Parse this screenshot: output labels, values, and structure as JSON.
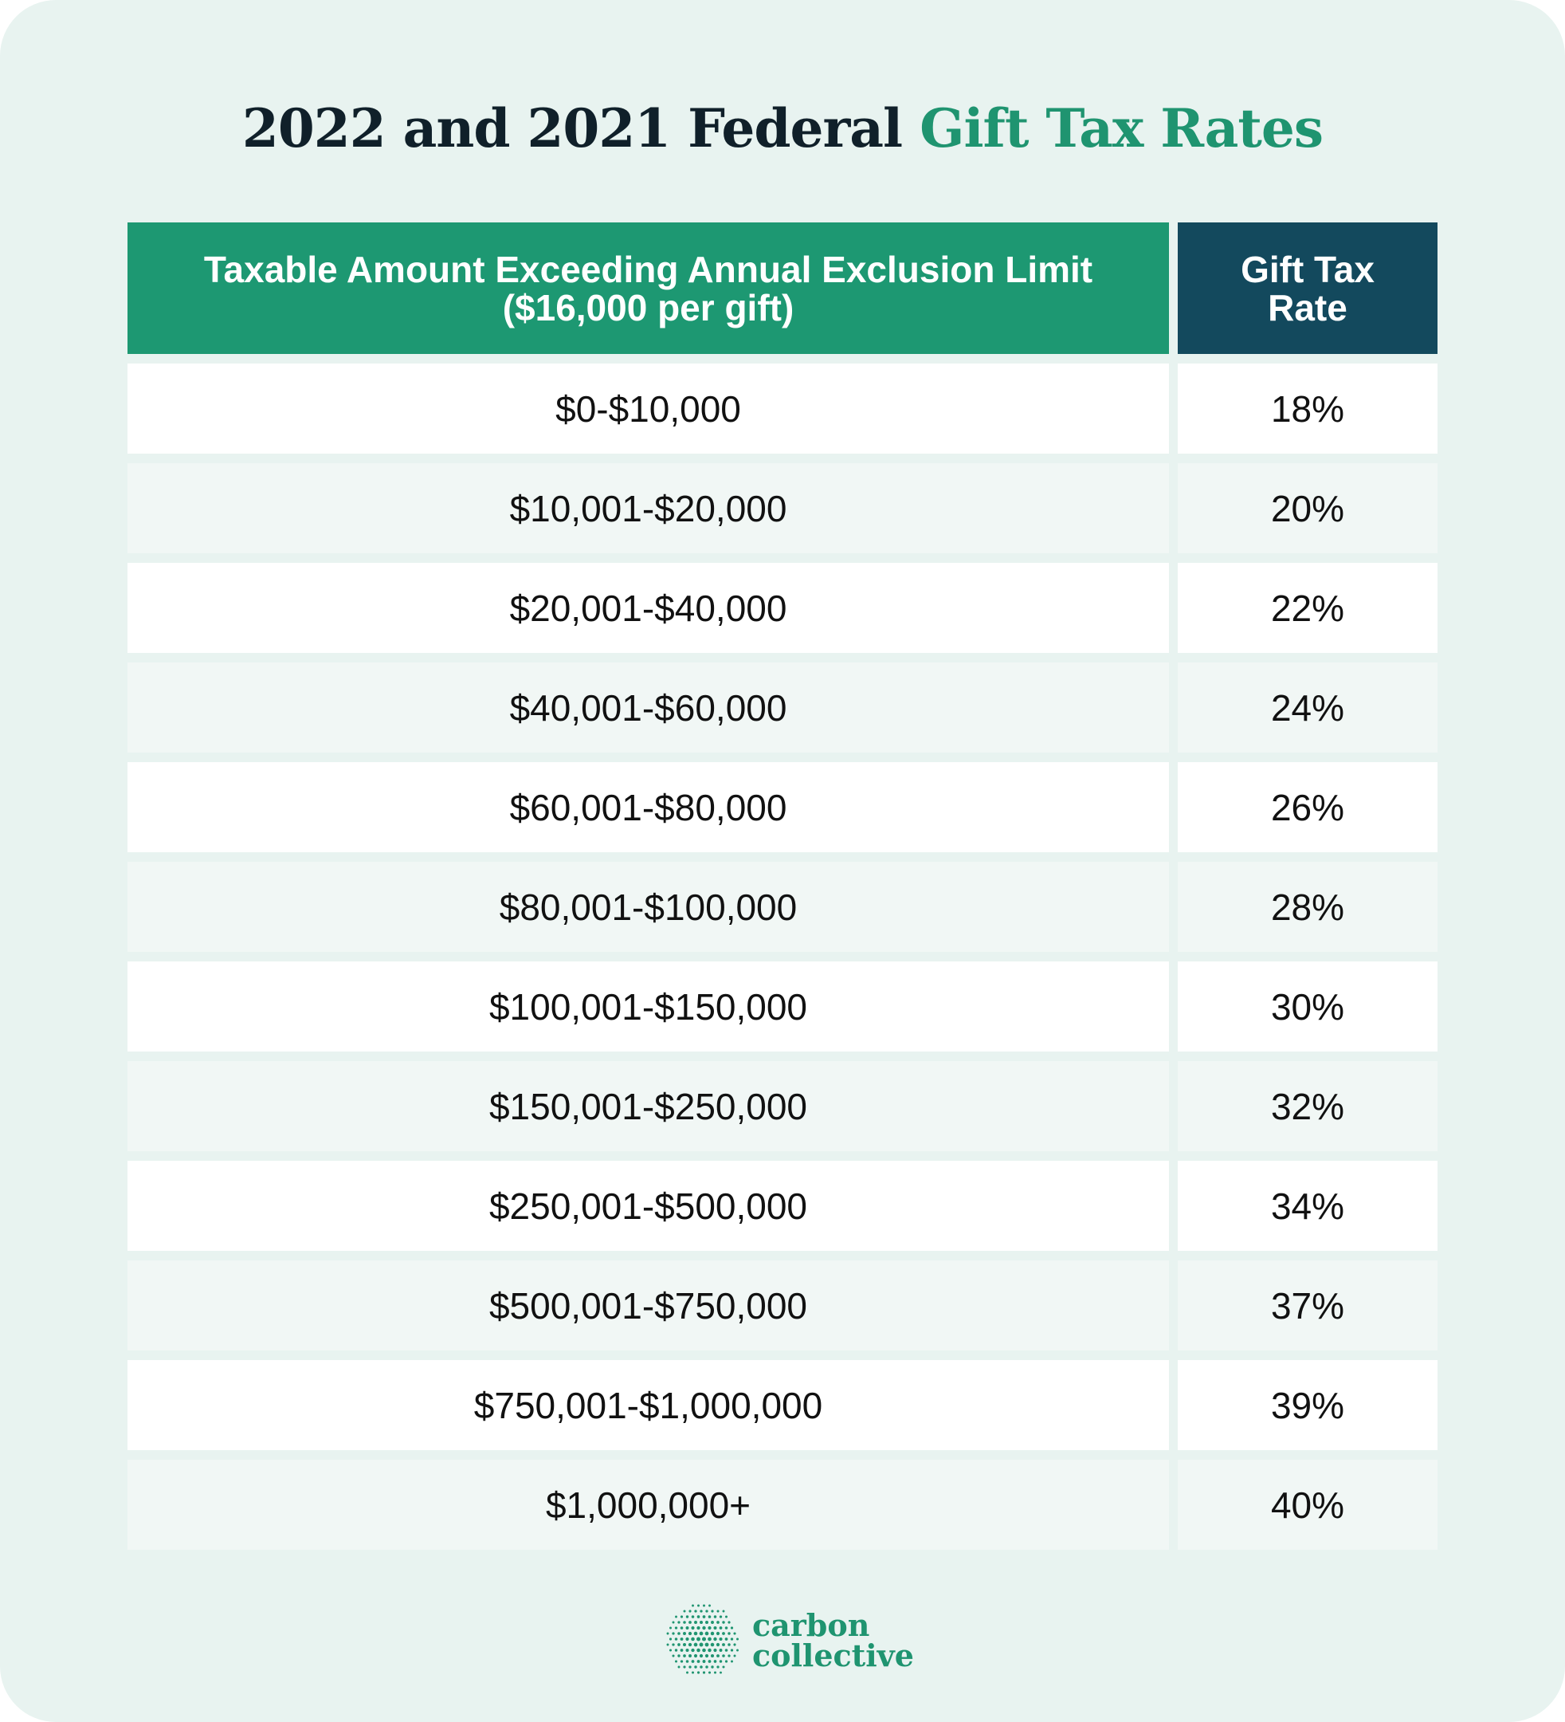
{
  "title": {
    "main": "2022 and 2021 Federal ",
    "accent": "Gift Tax Rates"
  },
  "table": {
    "headers": [
      [
        "Taxable Amount Exceeding Annual Exclusion Limit",
        "($16,000 per gift)"
      ],
      [
        "Gift Tax",
        "Rate"
      ]
    ],
    "rows": [
      {
        "amount": "$0-$10,000",
        "rate": "18%"
      },
      {
        "amount": "$10,001-$20,000",
        "rate": "20%"
      },
      {
        "amount": "$20,001-$40,000",
        "rate": "22%"
      },
      {
        "amount": "$40,001-$60,000",
        "rate": "24%"
      },
      {
        "amount": "$60,001-$80,000",
        "rate": "26%"
      },
      {
        "amount": "$80,001-$100,000",
        "rate": "28%"
      },
      {
        "amount": "$100,001-$150,000",
        "rate": "30%"
      },
      {
        "amount": "$150,001-$250,000",
        "rate": "32%"
      },
      {
        "amount": "$250,001-$500,000",
        "rate": "34%"
      },
      {
        "amount": "$500,001-$750,000",
        "rate": "37%"
      },
      {
        "amount": "$750,001-$1,000,000",
        "rate": "39%"
      },
      {
        "amount": "$1,000,000+",
        "rate": "40%"
      }
    ]
  },
  "logo": {
    "line1": "carbon",
    "line2": "collective",
    "icon": "dotted-globe-icon"
  },
  "colors": {
    "background": "#e8f3f0",
    "header_green": "#1d9872",
    "header_navy": "#13495d",
    "accent": "#1f9470"
  }
}
